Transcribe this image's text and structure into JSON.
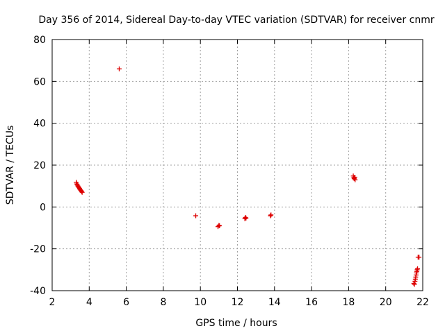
{
  "chart_data": {
    "type": "scatter",
    "title": "Day 356 of 2014, Sidereal Day-to-day VTEC variation (SDTVAR) for receiver cnmr",
    "xlabel": "GPS time / hours",
    "ylabel": "SDTVAR / TECUs",
    "xlim": [
      2,
      22
    ],
    "ylim": [
      -40,
      80
    ],
    "xticks": [
      2,
      4,
      6,
      8,
      10,
      12,
      14,
      16,
      18,
      20,
      22
    ],
    "yticks": [
      -40,
      -20,
      0,
      20,
      40,
      60,
      80
    ],
    "grid": true,
    "marker": "plus",
    "color": "#dd0000",
    "series": [
      {
        "name": "SDTVAR",
        "points": [
          [
            3.3,
            11.8
          ],
          [
            3.33,
            11.0
          ],
          [
            3.36,
            10.5
          ],
          [
            3.39,
            10.0
          ],
          [
            3.42,
            9.6
          ],
          [
            3.45,
            9.2
          ],
          [
            3.48,
            8.8
          ],
          [
            3.5,
            8.5
          ],
          [
            3.53,
            8.1
          ],
          [
            3.56,
            7.8
          ],
          [
            3.59,
            7.4
          ],
          [
            3.62,
            7.0
          ],
          [
            5.62,
            66.0
          ],
          [
            9.75,
            -4.2
          ],
          [
            10.95,
            -9.4
          ],
          [
            11.0,
            -8.8
          ],
          [
            11.03,
            -9.0
          ],
          [
            12.4,
            -5.6
          ],
          [
            12.43,
            -5.0
          ],
          [
            12.46,
            -5.3
          ],
          [
            13.78,
            -4.2
          ],
          [
            13.81,
            -3.8
          ],
          [
            18.25,
            14.8
          ],
          [
            18.28,
            14.0
          ],
          [
            18.3,
            13.5
          ],
          [
            18.33,
            14.2
          ],
          [
            18.35,
            13.0
          ],
          [
            21.52,
            -36.5
          ],
          [
            21.55,
            -37.0
          ],
          [
            21.58,
            -35.5
          ],
          [
            21.6,
            -34.5
          ],
          [
            21.62,
            -33.5
          ],
          [
            21.64,
            -32.5
          ],
          [
            21.66,
            -31.5
          ],
          [
            21.68,
            -30.8
          ],
          [
            21.7,
            -30.0
          ],
          [
            21.72,
            -29.5
          ],
          [
            21.75,
            -24.0
          ],
          [
            21.8,
            -24.0
          ]
        ]
      }
    ]
  }
}
